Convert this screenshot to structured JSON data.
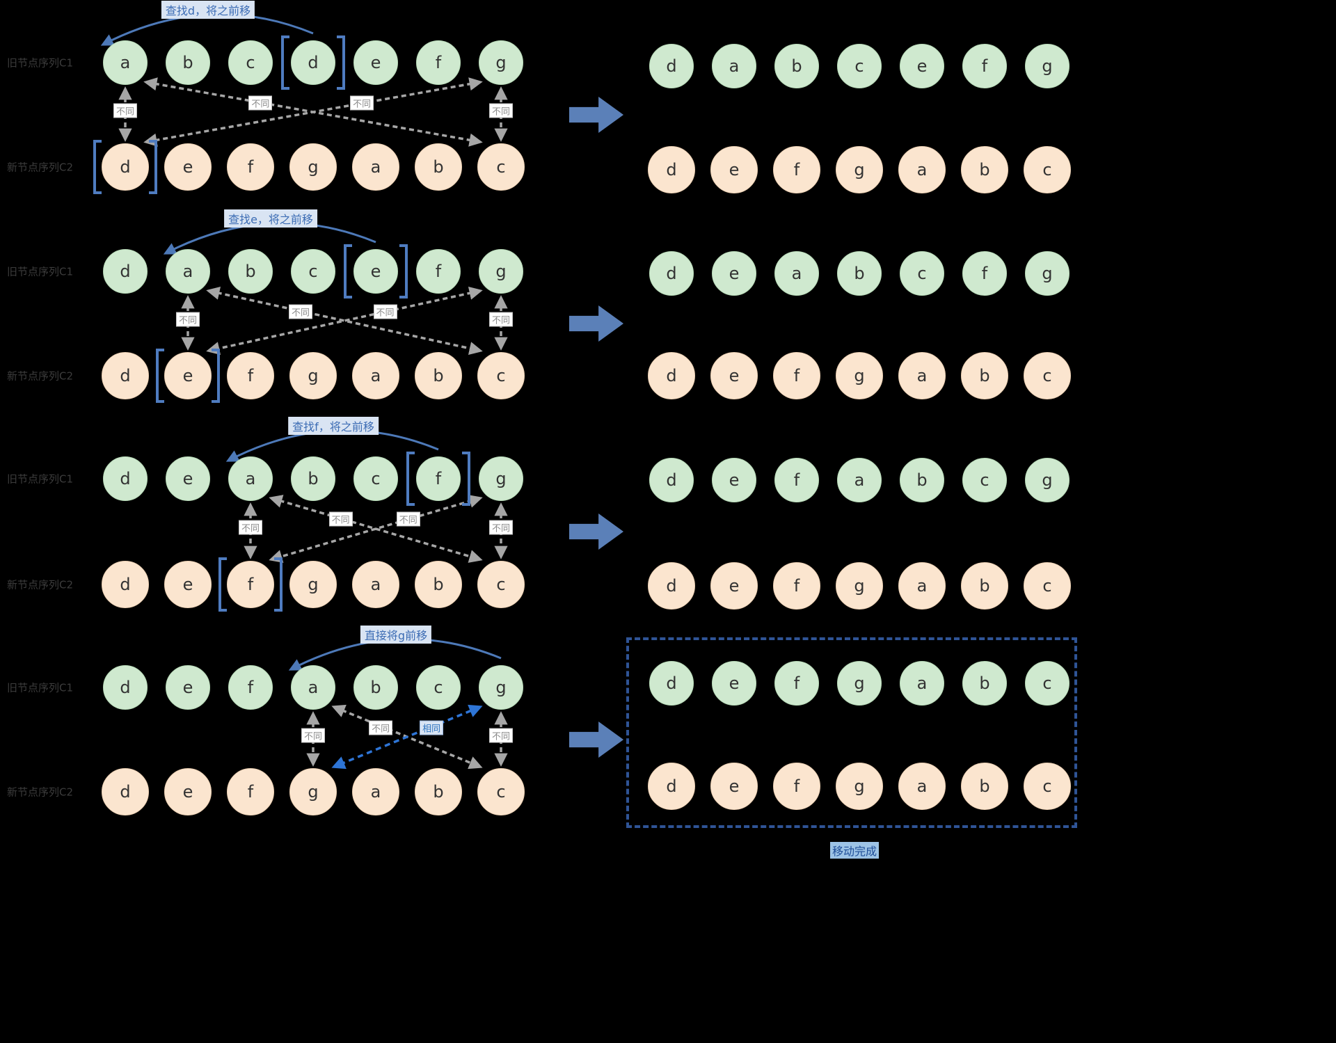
{
  "row_labels": {
    "old": "旧节点序列C1",
    "new": "新节点序列C2"
  },
  "done_label": "移动完成",
  "colors": {
    "background": "#000000",
    "green_node": "#cfe9cf",
    "orange_node": "#fbe5cf",
    "blue_accent": "#4d79b8",
    "bright_blue": "#2e75d6",
    "gray_arrow": "#a6a6a6"
  },
  "stages": [
    {
      "annotation": "查找d，将之前移",
      "c1": [
        "a",
        "b",
        "c",
        "d",
        "e",
        "f",
        "g"
      ],
      "c1_bracket_index": 3,
      "c2": [
        "d",
        "e",
        "f",
        "g",
        "a",
        "b",
        "c"
      ],
      "c2_bracket_index": 0,
      "result_top": [
        "d",
        "a",
        "b",
        "c",
        "e",
        "f",
        "g"
      ],
      "result_bottom": [
        "d",
        "e",
        "f",
        "g",
        "a",
        "b",
        "c"
      ],
      "labels": {
        "head": "不同",
        "cross_left": "不同",
        "cross_right": "不同",
        "tail": "不同"
      },
      "cross_right_same": false,
      "result_boxed": false
    },
    {
      "annotation": "查找e，将之前移",
      "c1": [
        "d",
        "a",
        "b",
        "c",
        "e",
        "f",
        "g"
      ],
      "c1_bracket_index": 4,
      "c2": [
        "d",
        "e",
        "f",
        "g",
        "a",
        "b",
        "c"
      ],
      "c2_bracket_index": 1,
      "result_top": [
        "d",
        "e",
        "a",
        "b",
        "c",
        "f",
        "g"
      ],
      "result_bottom": [
        "d",
        "e",
        "f",
        "g",
        "a",
        "b",
        "c"
      ],
      "labels": {
        "head": "不同",
        "cross_left": "不同",
        "cross_right": "不同",
        "tail": "不同"
      },
      "cross_right_same": false,
      "result_boxed": false
    },
    {
      "annotation": "查找f，将之前移",
      "c1": [
        "d",
        "e",
        "a",
        "b",
        "c",
        "f",
        "g"
      ],
      "c1_bracket_index": 5,
      "c2": [
        "d",
        "e",
        "f",
        "g",
        "a",
        "b",
        "c"
      ],
      "c2_bracket_index": 2,
      "result_top": [
        "d",
        "e",
        "f",
        "a",
        "b",
        "c",
        "g"
      ],
      "result_bottom": [
        "d",
        "e",
        "f",
        "g",
        "a",
        "b",
        "c"
      ],
      "labels": {
        "head": "不同",
        "cross_left": "不同",
        "cross_right": "不同",
        "tail": "不同"
      },
      "cross_right_same": false,
      "result_boxed": false
    },
    {
      "annotation": "直接将g前移",
      "c1": [
        "d",
        "e",
        "f",
        "a",
        "b",
        "c",
        "g"
      ],
      "c1_bracket_index": null,
      "c2": [
        "d",
        "e",
        "f",
        "g",
        "a",
        "b",
        "c"
      ],
      "c2_bracket_index": null,
      "result_top": [
        "d",
        "e",
        "f",
        "g",
        "a",
        "b",
        "c"
      ],
      "result_bottom": [
        "d",
        "e",
        "f",
        "g",
        "a",
        "b",
        "c"
      ],
      "labels": {
        "head": "不同",
        "cross_left": "不同",
        "cross_right": "相同",
        "tail": "不同"
      },
      "cross_right_same": true,
      "result_boxed": true
    }
  ]
}
